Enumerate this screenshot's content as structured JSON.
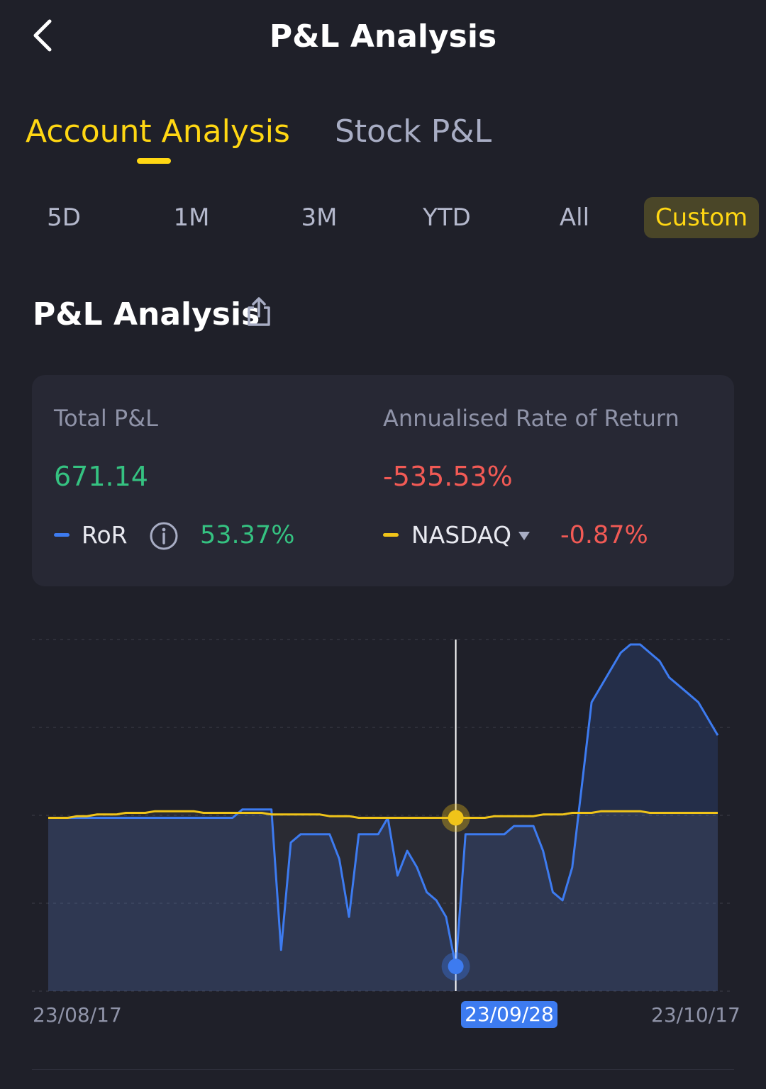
{
  "header": {
    "title": "P&L Analysis",
    "back_icon": "chevron-left-icon"
  },
  "tabs": [
    {
      "label": "Account Analysis",
      "active": true
    },
    {
      "label": "Stock P&L",
      "active": false
    }
  ],
  "ranges": [
    {
      "label": "5D",
      "active": false
    },
    {
      "label": "1M",
      "active": false
    },
    {
      "label": "3M",
      "active": false
    },
    {
      "label": "YTD",
      "active": false
    },
    {
      "label": "All",
      "active": false
    },
    {
      "label": "Custom",
      "active": true
    }
  ],
  "section": {
    "title": "P&L Analysis",
    "share_icon": "share-icon"
  },
  "summary": {
    "total_pl_label": "Total P&L",
    "total_pl_value": "671.14",
    "annualised_label": "Annualised Rate of Return",
    "annualised_value": "-535.53%",
    "ror_label": "RoR",
    "ror_value": "53.37%",
    "benchmark_label": "NASDAQ",
    "benchmark_value": "-0.87%"
  },
  "colors": {
    "background": "#1f2029",
    "card": "#272834",
    "accent": "#ffd713",
    "ror_line": "#3d7bf0",
    "benchmark_line": "#f0c419",
    "positive": "#35c281",
    "negative": "#f25a55"
  },
  "chart_data": {
    "type": "line",
    "x_start_label": "23/08/17",
    "x_selected_label": "23/09/28",
    "x_end_label": "23/10/17",
    "selected_index": 42,
    "grid": true,
    "series": [
      {
        "name": "RoR",
        "values": [
          0,
          0,
          0,
          0,
          0,
          0,
          0,
          0,
          0,
          0,
          0,
          0,
          0,
          0,
          0,
          0,
          0,
          0,
          0,
          0,
          0.5,
          0.5,
          0.5,
          0.5,
          -8,
          -1.5,
          -1,
          -1,
          -1,
          -1,
          -2.5,
          -6,
          -1,
          -1,
          -1,
          0,
          -3.5,
          -2,
          -3,
          -4.5,
          -5,
          -6,
          -9,
          -1,
          -1,
          -1,
          -1,
          -1,
          -0.5,
          -0.5,
          -0.5,
          -2,
          -4.5,
          -5,
          -3,
          2,
          7,
          8,
          9,
          10,
          10.5,
          10.5,
          10,
          9.5,
          8.5,
          8,
          7.5,
          7,
          6,
          5
        ]
      },
      {
        "name": "NASDAQ",
        "values": [
          0,
          0,
          0,
          0.1,
          0.1,
          0.2,
          0.2,
          0.2,
          0.3,
          0.3,
          0.3,
          0.4,
          0.4,
          0.4,
          0.4,
          0.4,
          0.3,
          0.3,
          0.3,
          0.3,
          0.3,
          0.3,
          0.3,
          0.2,
          0.2,
          0.2,
          0.2,
          0.2,
          0.2,
          0.1,
          0.1,
          0.1,
          0,
          0,
          0,
          0,
          0,
          0,
          0,
          0,
          0,
          0,
          0,
          0,
          0,
          0,
          0.1,
          0.1,
          0.1,
          0.1,
          0.1,
          0.2,
          0.2,
          0.2,
          0.3,
          0.3,
          0.3,
          0.4,
          0.4,
          0.4,
          0.4,
          0.4,
          0.3,
          0.3,
          0.3,
          0.3,
          0.3,
          0.3,
          0.3,
          0.3
        ]
      }
    ]
  }
}
